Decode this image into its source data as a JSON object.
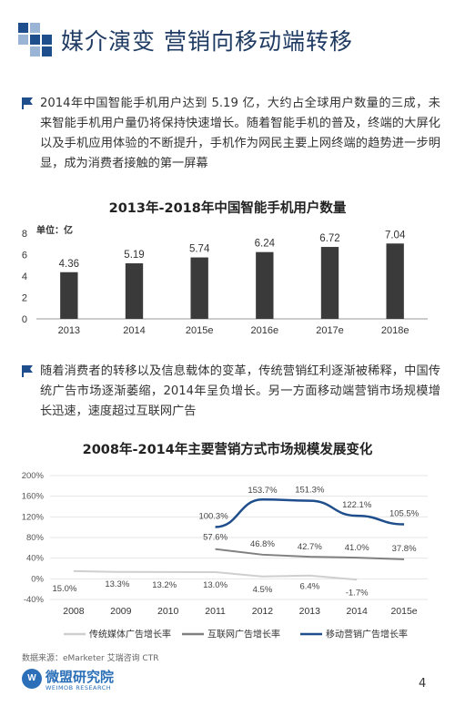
{
  "page": {
    "title": "媒介演变 营销向移动端转移",
    "para1": "2014年中国智能手机用户达到 5.19 亿，大约占全球用户数量的三成，未来智能手机用户量仍将保持快速增长。随着智能手机的普及，终端的大屏化以及手机应用体验的不断提升，手机作为网民主要上网终端的趋势进一步明显，成为消费者接触的第一屏幕",
    "para2": "随着消费者的转移以及信息载体的变革，传统营销红利逐渐被稀释，中国传统广告市场逐渐萎缩，2014年呈负增长。另一方面移动端营销市场规模增长迅速，速度超过互联网广告",
    "source": "数据来源：eMarketer 艾瑞咨询 CTR",
    "logo_name": "微盟研究院",
    "logo_sub": "WEIMOB RESEARCH",
    "logo_mark": "W",
    "page_number": "4",
    "colors": {
      "accent": "#1f4e8c",
      "bar": "#3a3a3a",
      "traditional": "#cfcfcf",
      "internet": "#808080",
      "mobile": "#1f4e8c"
    }
  },
  "chart_data": [
    {
      "type": "bar",
      "title": "2013年-2018年中国智能手机用户数量",
      "unit_label": "单位：亿",
      "categories": [
        "2013",
        "2014",
        "2015e",
        "2016e",
        "2017e",
        "2018e"
      ],
      "values": [
        4.36,
        5.19,
        5.74,
        6.24,
        6.72,
        7.04
      ],
      "value_labels": [
        "4.36",
        "5.19",
        "5.74",
        "6.24",
        "6.72",
        "7.04"
      ],
      "yticks": [
        "0",
        "2",
        "4",
        "6",
        "8"
      ],
      "ylim": [
        0,
        8
      ],
      "grid": false
    },
    {
      "type": "line",
      "title": "2008年-2014年主要营销方式市场规模发展变化",
      "categories": [
        "2008",
        "2009",
        "2010",
        "2011",
        "2012",
        "2013",
        "2014",
        "2015e"
      ],
      "yticks": [
        "-40%",
        "0%",
        "40%",
        "80%",
        "120%",
        "160%",
        "200%"
      ],
      "ylim": [
        -40,
        200
      ],
      "grid": true,
      "legend_position": "bottom",
      "series": [
        {
          "name": "传统媒体广告增长率",
          "values": [
            15.0,
            13.3,
            13.2,
            13.0,
            4.5,
            6.4,
            -1.7,
            null
          ],
          "labels": [
            "15.0%",
            "13.3%",
            "13.2%",
            "13.0%",
            "4.5%",
            "6.4%",
            "-1.7%",
            ""
          ]
        },
        {
          "name": "互联网广告增长率",
          "values": [
            null,
            null,
            null,
            57.6,
            46.8,
            42.7,
            41.0,
            37.8
          ],
          "labels": [
            "",
            "",
            "",
            "57.6%",
            "46.8%",
            "42.7%",
            "41.0%",
            "37.8%"
          ]
        },
        {
          "name": "移动营销广告增长率",
          "values": [
            null,
            null,
            null,
            100.3,
            153.7,
            151.3,
            122.1,
            105.5
          ],
          "labels": [
            "",
            "",
            "",
            "100.3%",
            "153.7%",
            "151.3%",
            "122.1%",
            "105.5%"
          ]
        }
      ]
    }
  ]
}
